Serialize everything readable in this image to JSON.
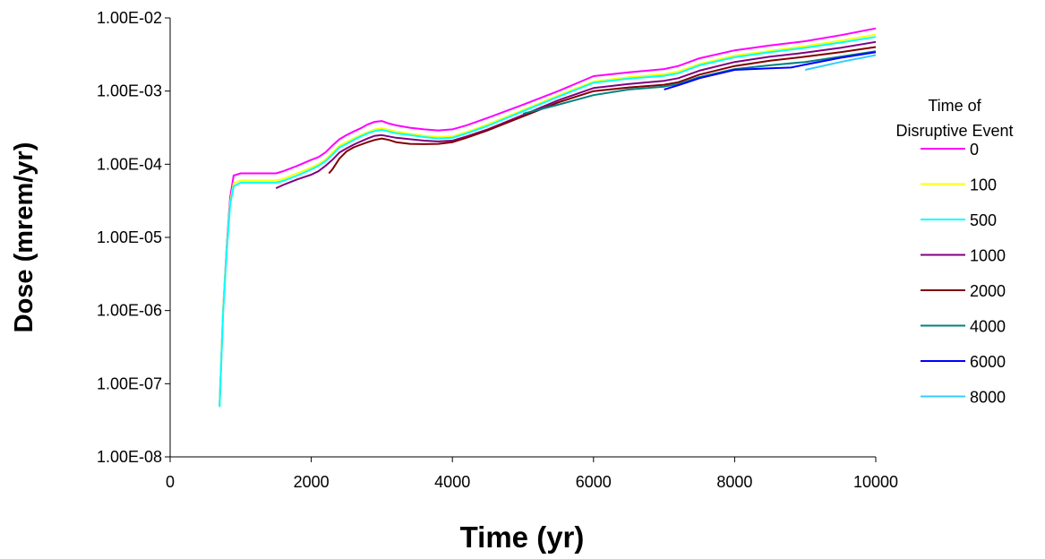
{
  "chart_data": {
    "type": "line",
    "xlabel": "Time (yr)",
    "ylabel": "Dose (mrem/yr)",
    "x_scale": "linear",
    "y_scale": "log",
    "xlim": [
      0,
      10000
    ],
    "ylim": [
      1e-08,
      0.01
    ],
    "x_ticks": [
      "0",
      "2000",
      "4000",
      "6000",
      "8000",
      "10000"
    ],
    "y_ticks": [
      "1.00E-08",
      "1.00E-07",
      "1.00E-06",
      "1.00E-05",
      "1.00E-04",
      "1.00E-03",
      "1.00E-02"
    ],
    "grid": false,
    "legend": {
      "title_line1": "Time of",
      "title_line2": "Disruptive Event",
      "placement": "right"
    },
    "series": [
      {
        "name": "0",
        "color": "#FF00FF",
        "points": [
          [
            700,
            5e-08
          ],
          [
            750,
            1e-06
          ],
          [
            800,
            7e-06
          ],
          [
            850,
            3.5e-05
          ],
          [
            900,
            7e-05
          ],
          [
            1000,
            7.5e-05
          ],
          [
            1200,
            7.5e-05
          ],
          [
            1500,
            7.5e-05
          ],
          [
            1600,
            8e-05
          ],
          [
            1800,
            9.5e-05
          ],
          [
            2000,
            0.000115
          ],
          [
            2100,
            0.000125
          ],
          [
            2200,
            0.000145
          ],
          [
            2300,
            0.00018
          ],
          [
            2400,
            0.00022
          ],
          [
            2500,
            0.00025
          ],
          [
            2600,
            0.00028
          ],
          [
            2700,
            0.00031
          ],
          [
            2800,
            0.00035
          ],
          [
            2900,
            0.00038
          ],
          [
            3000,
            0.00039
          ],
          [
            3100,
            0.00036
          ],
          [
            3200,
            0.00034
          ],
          [
            3400,
            0.000315
          ],
          [
            3600,
            0.0003
          ],
          [
            3800,
            0.00029
          ],
          [
            4000,
            0.0003
          ],
          [
            4200,
            0.00034
          ],
          [
            4500,
            0.00043
          ],
          [
            5000,
            0.00065
          ],
          [
            5500,
            0.001
          ],
          [
            6000,
            0.0016
          ],
          [
            6500,
            0.0018
          ],
          [
            7000,
            0.002
          ],
          [
            7200,
            0.0022
          ],
          [
            7500,
            0.0028
          ],
          [
            8000,
            0.0036
          ],
          [
            8500,
            0.0042
          ],
          [
            9000,
            0.0048
          ],
          [
            9500,
            0.0058
          ],
          [
            10000,
            0.0072
          ]
        ]
      },
      {
        "name": "100",
        "color": "#FFFF00",
        "points": [
          [
            700,
            5e-08
          ],
          [
            750,
            1e-06
          ],
          [
            800,
            6.5e-06
          ],
          [
            850,
            3e-05
          ],
          [
            900,
            5.5e-05
          ],
          [
            1000,
            6e-05
          ],
          [
            1200,
            6e-05
          ],
          [
            1500,
            6e-05
          ],
          [
            1600,
            6.3e-05
          ],
          [
            1800,
            7.5e-05
          ],
          [
            2000,
            9e-05
          ],
          [
            2100,
            0.0001
          ],
          [
            2200,
            0.000115
          ],
          [
            2300,
            0.000145
          ],
          [
            2400,
            0.00018
          ],
          [
            2500,
            0.0002
          ],
          [
            2600,
            0.000225
          ],
          [
            2700,
            0.00025
          ],
          [
            2800,
            0.000275
          ],
          [
            2900,
            0.0003
          ],
          [
            3000,
            0.00031
          ],
          [
            3100,
            0.000295
          ],
          [
            3200,
            0.00028
          ],
          [
            3400,
            0.00026
          ],
          [
            3600,
            0.000245
          ],
          [
            3800,
            0.000235
          ],
          [
            4000,
            0.00024
          ],
          [
            4200,
            0.000275
          ],
          [
            4500,
            0.00035
          ],
          [
            5000,
            0.00055
          ],
          [
            5500,
            0.00087
          ],
          [
            6000,
            0.00135
          ],
          [
            6500,
            0.00155
          ],
          [
            7000,
            0.0017
          ],
          [
            7200,
            0.00185
          ],
          [
            7500,
            0.00235
          ],
          [
            8000,
            0.00305
          ],
          [
            8500,
            0.00355
          ],
          [
            9000,
            0.0041
          ],
          [
            9500,
            0.0049
          ],
          [
            10000,
            0.0059
          ]
        ]
      },
      {
        "name": "500",
        "color": "#00FFFF",
        "points": [
          [
            700,
            4.8e-08
          ],
          [
            750,
            9e-07
          ],
          [
            800,
            6e-06
          ],
          [
            850,
            2.8e-05
          ],
          [
            900,
            5e-05
          ],
          [
            1000,
            5.6e-05
          ],
          [
            1200,
            5.6e-05
          ],
          [
            1500,
            5.6e-05
          ],
          [
            1600,
            5.9e-05
          ],
          [
            1800,
            7e-05
          ],
          [
            2000,
            8.5e-05
          ],
          [
            2100,
            9.5e-05
          ],
          [
            2200,
            0.00011
          ],
          [
            2300,
            0.000135
          ],
          [
            2400,
            0.00017
          ],
          [
            2500,
            0.00019
          ],
          [
            2600,
            0.000215
          ],
          [
            2700,
            0.00024
          ],
          [
            2800,
            0.000265
          ],
          [
            2900,
            0.000285
          ],
          [
            3000,
            0.000295
          ],
          [
            3100,
            0.00028
          ],
          [
            3200,
            0.000265
          ],
          [
            3400,
            0.00025
          ],
          [
            3600,
            0.000235
          ],
          [
            3800,
            0.000225
          ],
          [
            4000,
            0.00023
          ],
          [
            4200,
            0.000265
          ],
          [
            4500,
            0.000335
          ],
          [
            5000,
            0.00053
          ],
          [
            5500,
            0.00084
          ],
          [
            6000,
            0.0013
          ],
          [
            6500,
            0.00148
          ],
          [
            7000,
            0.00162
          ],
          [
            7200,
            0.00175
          ],
          [
            7500,
            0.00225
          ],
          [
            8000,
            0.0029
          ],
          [
            8500,
            0.0034
          ],
          [
            9000,
            0.0039
          ],
          [
            9500,
            0.0046
          ],
          [
            10000,
            0.0055
          ]
        ]
      },
      {
        "name": "1000",
        "color": "#800080",
        "points": [
          [
            1500,
            4.7e-05
          ],
          [
            1600,
            5.2e-05
          ],
          [
            1800,
            6.2e-05
          ],
          [
            2000,
            7.2e-05
          ],
          [
            2100,
            8e-05
          ],
          [
            2200,
            9.5e-05
          ],
          [
            2300,
            0.000115
          ],
          [
            2400,
            0.000145
          ],
          [
            2500,
            0.000165
          ],
          [
            2600,
            0.000185
          ],
          [
            2700,
            0.000205
          ],
          [
            2800,
            0.000225
          ],
          [
            2900,
            0.000245
          ],
          [
            3000,
            0.00025
          ],
          [
            3100,
            0.00024
          ],
          [
            3200,
            0.00023
          ],
          [
            3400,
            0.00022
          ],
          [
            3600,
            0.00021
          ],
          [
            3800,
            0.000205
          ],
          [
            4000,
            0.00021
          ],
          [
            4200,
            0.00024
          ],
          [
            4500,
            0.0003
          ],
          [
            5000,
            0.00047
          ],
          [
            5500,
            0.00075
          ],
          [
            6000,
            0.0011
          ],
          [
            6500,
            0.00125
          ],
          [
            7000,
            0.00138
          ],
          [
            7200,
            0.0015
          ],
          [
            7500,
            0.0019
          ],
          [
            8000,
            0.0025
          ],
          [
            8500,
            0.00295
          ],
          [
            9000,
            0.00335
          ],
          [
            9500,
            0.0039
          ],
          [
            10000,
            0.0047
          ]
        ]
      },
      {
        "name": "2000",
        "color": "#800000",
        "points": [
          [
            2250,
            7.5e-05
          ],
          [
            2300,
            8.5e-05
          ],
          [
            2400,
            0.00012
          ],
          [
            2500,
            0.00015
          ],
          [
            2600,
            0.00017
          ],
          [
            2700,
            0.000185
          ],
          [
            2800,
            0.0002
          ],
          [
            2900,
            0.000215
          ],
          [
            3000,
            0.000225
          ],
          [
            3100,
            0.000215
          ],
          [
            3200,
            0.0002
          ],
          [
            3400,
            0.00019
          ],
          [
            3600,
            0.000188
          ],
          [
            3800,
            0.00019
          ],
          [
            4000,
            0.0002
          ],
          [
            4200,
            0.00023
          ],
          [
            4500,
            0.00029
          ],
          [
            5000,
            0.00045
          ],
          [
            5500,
            0.0007
          ],
          [
            6000,
            0.001
          ],
          [
            6500,
            0.00112
          ],
          [
            7000,
            0.00122
          ],
          [
            7200,
            0.00132
          ],
          [
            7500,
            0.00168
          ],
          [
            8000,
            0.0022
          ],
          [
            8500,
            0.0026
          ],
          [
            9000,
            0.00295
          ],
          [
            9500,
            0.0034
          ],
          [
            10000,
            0.004
          ]
        ]
      },
      {
        "name": "4000",
        "color": "#008080",
        "points": [
          [
            5000,
            0.00049
          ],
          [
            5500,
            0.00065
          ],
          [
            6000,
            0.00088
          ],
          [
            6500,
            0.00105
          ],
          [
            7000,
            0.00115
          ],
          [
            7200,
            0.00125
          ],
          [
            7500,
            0.00155
          ],
          [
            8000,
            0.002
          ],
          [
            8500,
            0.00225
          ],
          [
            9000,
            0.0025
          ],
          [
            9500,
            0.00295
          ],
          [
            10000,
            0.0035
          ]
        ]
      },
      {
        "name": "6000",
        "color": "#0000FF",
        "points": [
          [
            7000,
            0.00105
          ],
          [
            7200,
            0.0012
          ],
          [
            7500,
            0.0015
          ],
          [
            8000,
            0.00195
          ],
          [
            8500,
            0.00205
          ],
          [
            8800,
            0.0021
          ],
          [
            9000,
            0.0023
          ],
          [
            9500,
            0.00285
          ],
          [
            10000,
            0.0034
          ]
        ]
      },
      {
        "name": "8000",
        "color": "#33CCFF",
        "points": [
          [
            9000,
            0.00195
          ],
          [
            9500,
            0.0025
          ],
          [
            10000,
            0.0031
          ]
        ]
      }
    ]
  }
}
